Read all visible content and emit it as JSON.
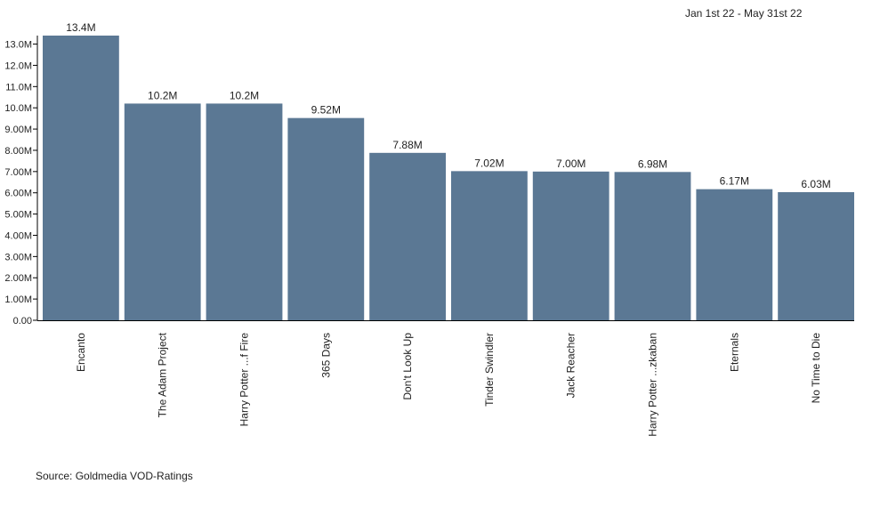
{
  "date_range": "Jan 1st 22 - May 31st 22",
  "source": "Source: Goldmedia VOD-Ratings",
  "colors": {
    "bar": "#5b7894",
    "axis": "#000000",
    "text": "#222222"
  },
  "chart_data": {
    "type": "bar",
    "title": "",
    "xlabel": "",
    "ylabel": "",
    "categories": [
      "Encanto",
      "The Adam Project",
      "Harry Potter ...f Fire",
      "365 Days",
      "Don't Look Up",
      "Tinder Swindler",
      "Jack Reacher",
      "Harry Potter ...zkaban",
      "Eternals",
      "No Time to Die"
    ],
    "values": [
      13.4,
      10.2,
      10.2,
      9.52,
      7.88,
      7.02,
      7.0,
      6.98,
      6.17,
      6.03
    ],
    "data_labels": [
      "13.4M",
      "10.2M",
      "10.2M",
      "9.52M",
      "7.88M",
      "7.02M",
      "7.00M",
      "6.98M",
      "6.17M",
      "6.03M"
    ],
    "yticks": [
      0,
      1,
      2,
      3,
      4,
      5,
      6,
      7,
      8,
      9,
      10,
      11,
      12,
      13
    ],
    "ytick_labels": [
      "0.00",
      "1.00M",
      "2.00M",
      "3.00M",
      "4.00M",
      "5.00M",
      "6.00M",
      "7.00M",
      "8.00M",
      "9.00M",
      "10.0M",
      "11.0M",
      "12.0M",
      "13.0M"
    ],
    "ylim": [
      0,
      13.4
    ],
    "grid": false,
    "legend": "none"
  }
}
